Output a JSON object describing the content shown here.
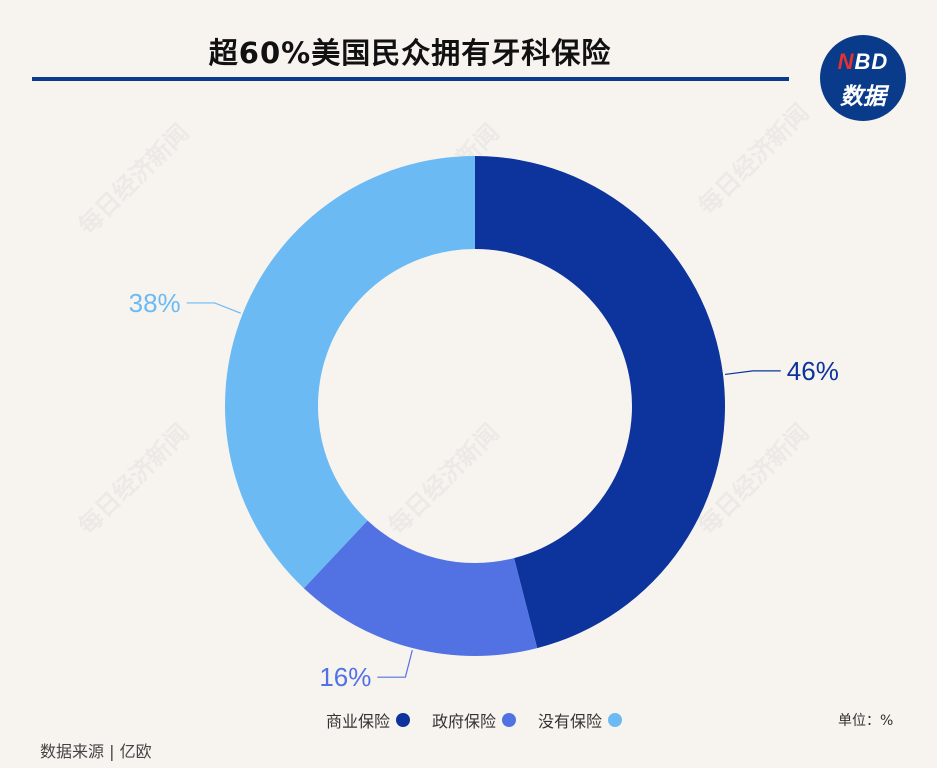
{
  "title": "超60%美国民众拥有牙科保险",
  "logo": {
    "n": "N",
    "bd": "BD",
    "line2": "数据"
  },
  "watermark": "每日经济新闻",
  "unit": "单位：%",
  "source": "数据来源 | 亿欧",
  "colors": {
    "accent": "#0b3c8c",
    "background": "#f7f4f0"
  },
  "chart_data": {
    "type": "pie",
    "donut": true,
    "categories": [
      "商业保险",
      "政府保险",
      "没有保险"
    ],
    "values": [
      46,
      16,
      38
    ],
    "labels": [
      "46%",
      "16%",
      "38%"
    ],
    "colors": [
      "#0d349c",
      "#5272e4",
      "#6bbaf4"
    ],
    "legend_position": "bottom"
  }
}
